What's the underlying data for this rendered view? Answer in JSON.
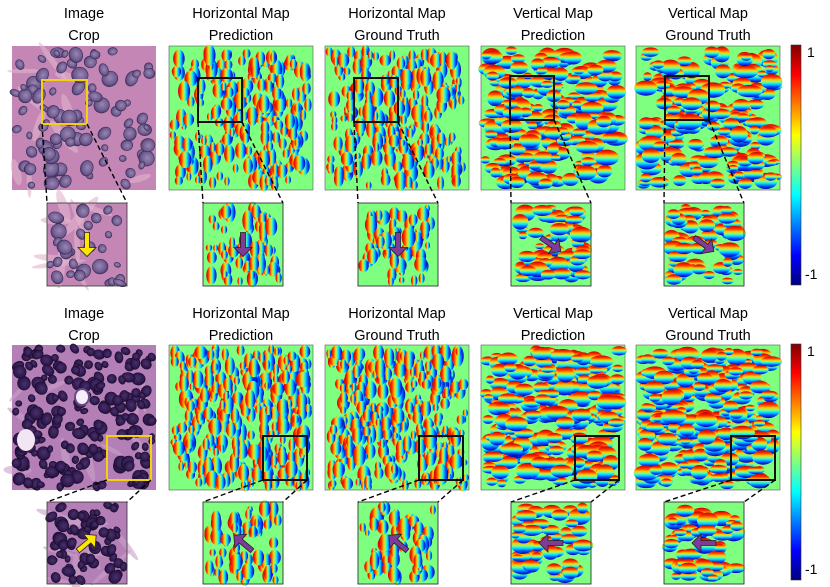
{
  "figure": {
    "rows": [
      {
        "panels": [
          {
            "title_line1": "Image",
            "title_line2": "Crop",
            "kind": "tissue_light"
          },
          {
            "title_line1": "Horizontal Map",
            "title_line2": "Prediction",
            "kind": "horizontal"
          },
          {
            "title_line1": "Horizontal Map",
            "title_line2": "Ground Truth",
            "kind": "horizontal"
          },
          {
            "title_line1": "Vertical Map",
            "title_line2": "Prediction",
            "kind": "vertical"
          },
          {
            "title_line1": "Vertical Map",
            "title_line2": "Ground Truth",
            "kind": "vertical"
          }
        ],
        "arrow_direction": [
          "down",
          "down",
          "down",
          "down-right",
          "down-right"
        ]
      },
      {
        "panels": [
          {
            "title_line1": "Image",
            "title_line2": "Crop",
            "kind": "tissue_dark"
          },
          {
            "title_line1": "Horizontal Map",
            "title_line2": "Prediction",
            "kind": "horizontal"
          },
          {
            "title_line1": "Horizontal Map",
            "title_line2": "Ground Truth",
            "kind": "horizontal"
          },
          {
            "title_line1": "Vertical Map",
            "title_line2": "Prediction",
            "kind": "vertical"
          },
          {
            "title_line1": "Vertical Map",
            "title_line2": "Ground Truth",
            "kind": "vertical"
          }
        ],
        "arrow_direction": [
          "up-right",
          "up-left",
          "up-left",
          "left",
          "left"
        ]
      }
    ],
    "colorbar": {
      "max_label": "1",
      "min_label": "-1",
      "colormap": "jet",
      "colors": [
        "#7f0000",
        "#ff0000",
        "#ff7f00",
        "#ffff00",
        "#7fff7f",
        "#00ffff",
        "#007fff",
        "#0000ff",
        "#00007f"
      ]
    },
    "colors": {
      "map_background": "#7fff7f",
      "highlight_box_image": "#f2d20d",
      "highlight_box_map": "#111111",
      "arrow_image": "#ffe600",
      "arrow_map": "#7e3b9a",
      "tissue_light_bg": "#c487b5",
      "tissue_dark_bg": "#b47fb6"
    }
  }
}
